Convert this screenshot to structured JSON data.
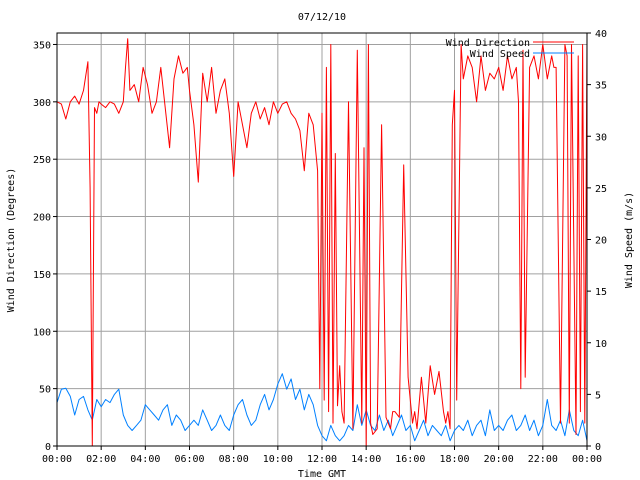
{
  "chart_data": {
    "type": "line",
    "title": "07/12/10",
    "xlabel": "Time GMT",
    "ylabel": "Wind Direction (Degrees)",
    "y2label": "Wind Speed (m/s)",
    "xlim": [
      0,
      24
    ],
    "ylim": [
      0,
      360
    ],
    "y2lim": [
      0,
      40
    ],
    "grid": true,
    "legend_position": "top-right",
    "x_tick_labels": [
      "00:00",
      "02:00",
      "04:00",
      "06:00",
      "08:00",
      "10:00",
      "12:00",
      "14:00",
      "16:00",
      "18:00",
      "20:00",
      "22:00",
      "00:00"
    ],
    "y_ticks": [
      0,
      50,
      100,
      150,
      200,
      250,
      300,
      350
    ],
    "y2_ticks": [
      0,
      5,
      10,
      15,
      20,
      25,
      30,
      35,
      40
    ],
    "series": [
      {
        "name": "Wind Direction",
        "axis": "left",
        "color": "#ff0000",
        "x": [
          0,
          0.2,
          0.4,
          0.6,
          0.8,
          1.0,
          1.2,
          1.4,
          1.5,
          1.6,
          1.7,
          1.8,
          1.9,
          2.0,
          2.2,
          2.4,
          2.6,
          2.8,
          3.0,
          3.1,
          3.2,
          3.3,
          3.5,
          3.7,
          3.9,
          4.1,
          4.3,
          4.5,
          4.7,
          4.9,
          5.1,
          5.3,
          5.5,
          5.7,
          5.9,
          6.0,
          6.2,
          6.4,
          6.6,
          6.8,
          7.0,
          7.2,
          7.4,
          7.6,
          7.8,
          8.0,
          8.2,
          8.4,
          8.6,
          8.8,
          9.0,
          9.2,
          9.4,
          9.6,
          9.8,
          10.0,
          10.2,
          10.4,
          10.6,
          10.8,
          11.0,
          11.2,
          11.4,
          11.6,
          11.8,
          11.9,
          12.0,
          12.1,
          12.2,
          12.3,
          12.4,
          12.5,
          12.6,
          12.7,
          12.8,
          12.9,
          13.0,
          13.2,
          13.4,
          13.6,
          13.8,
          13.9,
          14.0,
          14.1,
          14.2,
          14.3,
          14.5,
          14.7,
          14.9,
          15.1,
          15.2,
          15.3,
          15.5,
          15.7,
          15.9,
          16.1,
          16.2,
          16.3,
          16.5,
          16.7,
          16.9,
          17.1,
          17.3,
          17.5,
          17.6,
          17.7,
          17.8,
          17.9,
          18.0,
          18.1,
          18.3,
          18.4,
          18.6,
          18.8,
          19.0,
          19.2,
          19.4,
          19.6,
          19.8,
          20.0,
          20.2,
          20.4,
          20.6,
          20.8,
          20.9,
          21.0,
          21.1,
          21.2,
          21.4,
          21.6,
          21.8,
          22.0,
          22.2,
          22.4,
          22.5,
          22.6,
          22.8,
          23.0,
          23.1,
          23.2,
          23.3,
          23.5,
          23.6,
          23.7,
          23.8,
          23.9,
          24.0
        ],
        "values": [
          300,
          298,
          285,
          300,
          305,
          298,
          310,
          335,
          225,
          0,
          295,
          290,
          300,
          298,
          295,
          300,
          298,
          290,
          300,
          330,
          355,
          310,
          315,
          300,
          330,
          315,
          290,
          300,
          330,
          295,
          260,
          320,
          340,
          325,
          330,
          310,
          280,
          230,
          325,
          300,
          330,
          290,
          310,
          320,
          290,
          235,
          300,
          280,
          260,
          290,
          300,
          285,
          295,
          280,
          300,
          290,
          298,
          300,
          290,
          285,
          275,
          240,
          290,
          280,
          240,
          50,
          290,
          40,
          330,
          30,
          350,
          20,
          255,
          35,
          70,
          30,
          20,
          300,
          15,
          345,
          20,
          260,
          0,
          350,
          20,
          10,
          15,
          280,
          25,
          15,
          30,
          30,
          25,
          245,
          60,
          20,
          30,
          15,
          60,
          20,
          70,
          45,
          65,
          30,
          20,
          30,
          15,
          280,
          310,
          40,
          350,
          320,
          340,
          330,
          300,
          340,
          310,
          325,
          320,
          330,
          310,
          340,
          320,
          330,
          300,
          50,
          345,
          60,
          330,
          340,
          320,
          350,
          320,
          340,
          330,
          330,
          20,
          350,
          340,
          20,
          350,
          10,
          340,
          30,
          350,
          20,
          355
        ]
      },
      {
        "name": "Wind Speed",
        "axis": "right",
        "color": "#0080ff",
        "x": [
          0,
          0.2,
          0.4,
          0.6,
          0.8,
          1.0,
          1.2,
          1.4,
          1.6,
          1.8,
          2.0,
          2.2,
          2.4,
          2.6,
          2.8,
          3.0,
          3.2,
          3.4,
          3.6,
          3.8,
          4.0,
          4.2,
          4.4,
          4.6,
          4.8,
          5.0,
          5.2,
          5.4,
          5.6,
          5.8,
          6.0,
          6.2,
          6.4,
          6.6,
          6.8,
          7.0,
          7.2,
          7.4,
          7.6,
          7.8,
          8.0,
          8.2,
          8.4,
          8.6,
          8.8,
          9.0,
          9.2,
          9.4,
          9.6,
          9.8,
          10.0,
          10.2,
          10.4,
          10.6,
          10.8,
          11.0,
          11.2,
          11.4,
          11.6,
          11.8,
          12.0,
          12.2,
          12.4,
          12.6,
          12.8,
          13.0,
          13.2,
          13.4,
          13.6,
          13.8,
          14.0,
          14.2,
          14.4,
          14.6,
          14.8,
          15.0,
          15.2,
          15.4,
          15.6,
          15.8,
          16.0,
          16.2,
          16.4,
          16.6,
          16.8,
          17.0,
          17.2,
          17.4,
          17.6,
          17.8,
          18.0,
          18.2,
          18.4,
          18.6,
          18.8,
          19.0,
          19.2,
          19.4,
          19.6,
          19.8,
          20.0,
          20.2,
          20.4,
          20.6,
          20.8,
          21.0,
          21.2,
          21.4,
          21.6,
          21.8,
          22.0,
          22.2,
          22.4,
          22.6,
          22.8,
          23.0,
          23.2,
          23.4,
          23.6,
          23.8,
          24.0
        ],
        "values": [
          4.2,
          5.5,
          5.6,
          4.8,
          3.0,
          4.5,
          4.8,
          3.5,
          2.5,
          4.5,
          3.8,
          4.5,
          4.2,
          5.0,
          5.5,
          3.0,
          2.0,
          1.5,
          2.0,
          2.5,
          4.0,
          3.5,
          3.0,
          2.5,
          3.5,
          4.0,
          2.0,
          3.0,
          2.5,
          1.5,
          2.0,
          2.5,
          2.0,
          3.5,
          2.5,
          1.5,
          2.0,
          3.0,
          2.0,
          1.5,
          3.0,
          4.0,
          4.5,
          3.0,
          2.0,
          2.5,
          4.0,
          5.0,
          3.5,
          4.5,
          6.0,
          7.0,
          5.5,
          6.5,
          4.5,
          5.5,
          3.5,
          5.0,
          4.0,
          2.0,
          1.0,
          0.5,
          2.0,
          1.0,
          0.5,
          1.0,
          2.0,
          1.5,
          4.0,
          2.0,
          3.5,
          2.0,
          1.5,
          3.0,
          1.5,
          2.5,
          1.0,
          2.0,
          3.0,
          1.5,
          2.0,
          0.5,
          1.5,
          2.5,
          1.0,
          2.0,
          1.5,
          1.0,
          2.0,
          0.5,
          1.5,
          2.0,
          1.5,
          2.5,
          1.0,
          2.0,
          2.5,
          1.0,
          3.5,
          1.5,
          2.0,
          1.5,
          2.5,
          3.0,
          1.5,
          2.0,
          3.0,
          1.5,
          2.5,
          1.0,
          2.0,
          4.5,
          2.0,
          1.5,
          2.5,
          1.0,
          3.5,
          1.5,
          1.0,
          2.5,
          0.5
        ]
      }
    ]
  }
}
